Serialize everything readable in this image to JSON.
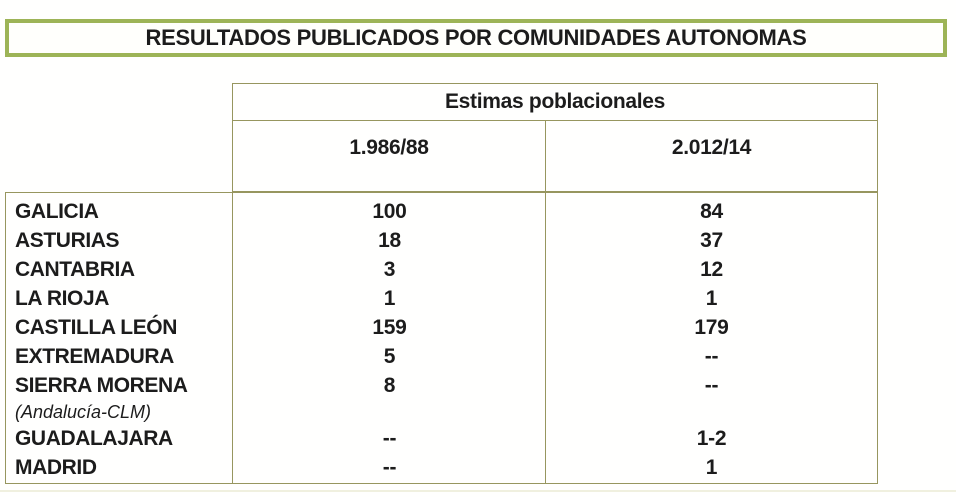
{
  "title": "RESULTADOS PUBLICADOS POR COMUNIDADES AUTONOMAS",
  "table": {
    "group_header": "Estimas poblacionales",
    "columns": [
      "1.986/88",
      "2.012/14"
    ],
    "rows": [
      {
        "label": "GALICIA",
        "v1": "100",
        "v2": "84"
      },
      {
        "label": "ASTURIAS",
        "v1": "18",
        "v2": "37"
      },
      {
        "label": "CANTABRIA",
        "v1": "3",
        "v2": "12"
      },
      {
        "label": "LA RIOJA",
        "v1": "1",
        "v2": "1"
      },
      {
        "label": "CASTILLA LEÓN",
        "v1": "159",
        "v2": "179"
      },
      {
        "label": "EXTREMADURA",
        "v1": "5",
        "v2": "--"
      },
      {
        "label": "SIERRA MORENA",
        "v1": "8",
        "v2": "--"
      },
      {
        "label": "(Andalucía-CLM)",
        "v1": "",
        "v2": "",
        "sub": true
      },
      {
        "label": "GUADALAJARA",
        "v1": "--",
        "v2": "1-2"
      },
      {
        "label": "MADRID",
        "v1": "--",
        "v2": "1"
      }
    ]
  },
  "colors": {
    "title_border": "#9db457",
    "table_border": "#97965f",
    "text": "#1c1c1c"
  }
}
